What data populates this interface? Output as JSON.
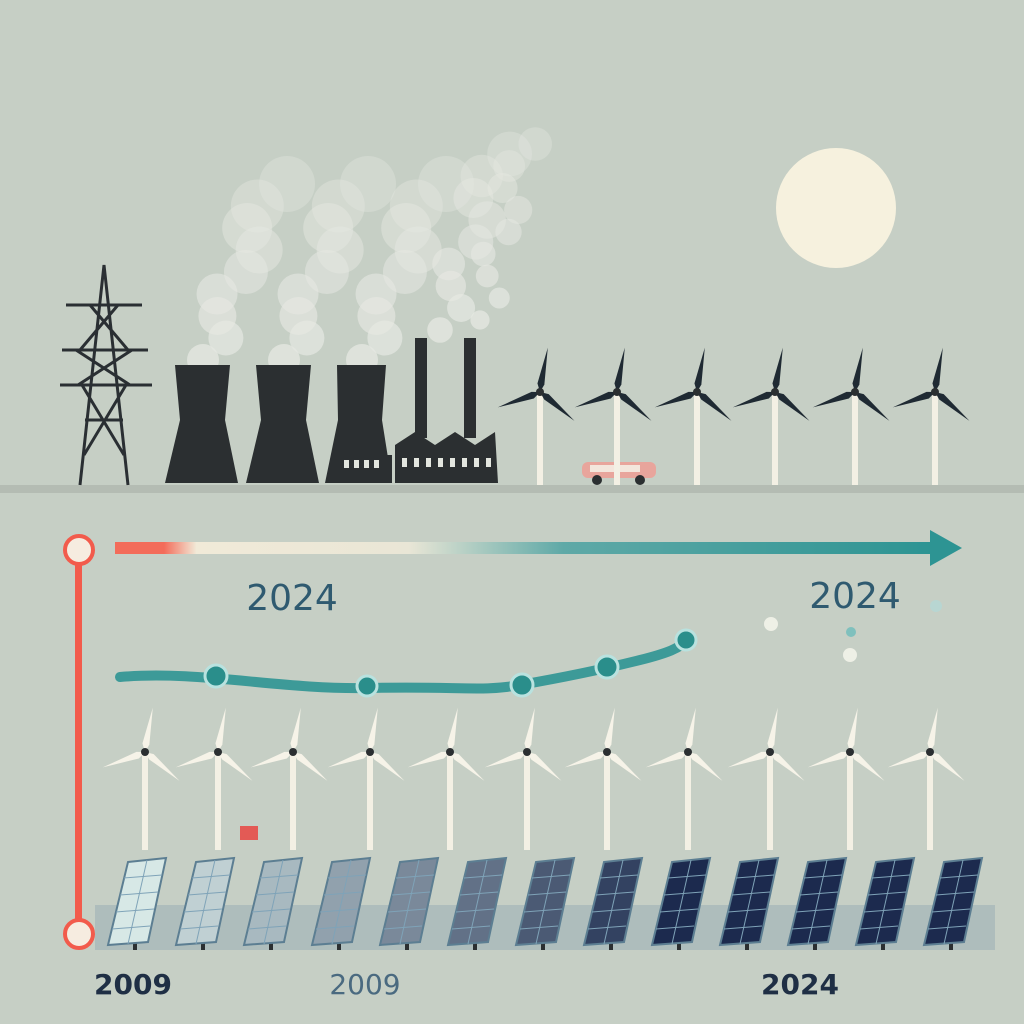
{
  "labels": {
    "timeline_left": "2024",
    "timeline_right": "2024",
    "bottom_left": "2009",
    "bottom_middle": "2009",
    "bottom_right": "2024"
  }
}
